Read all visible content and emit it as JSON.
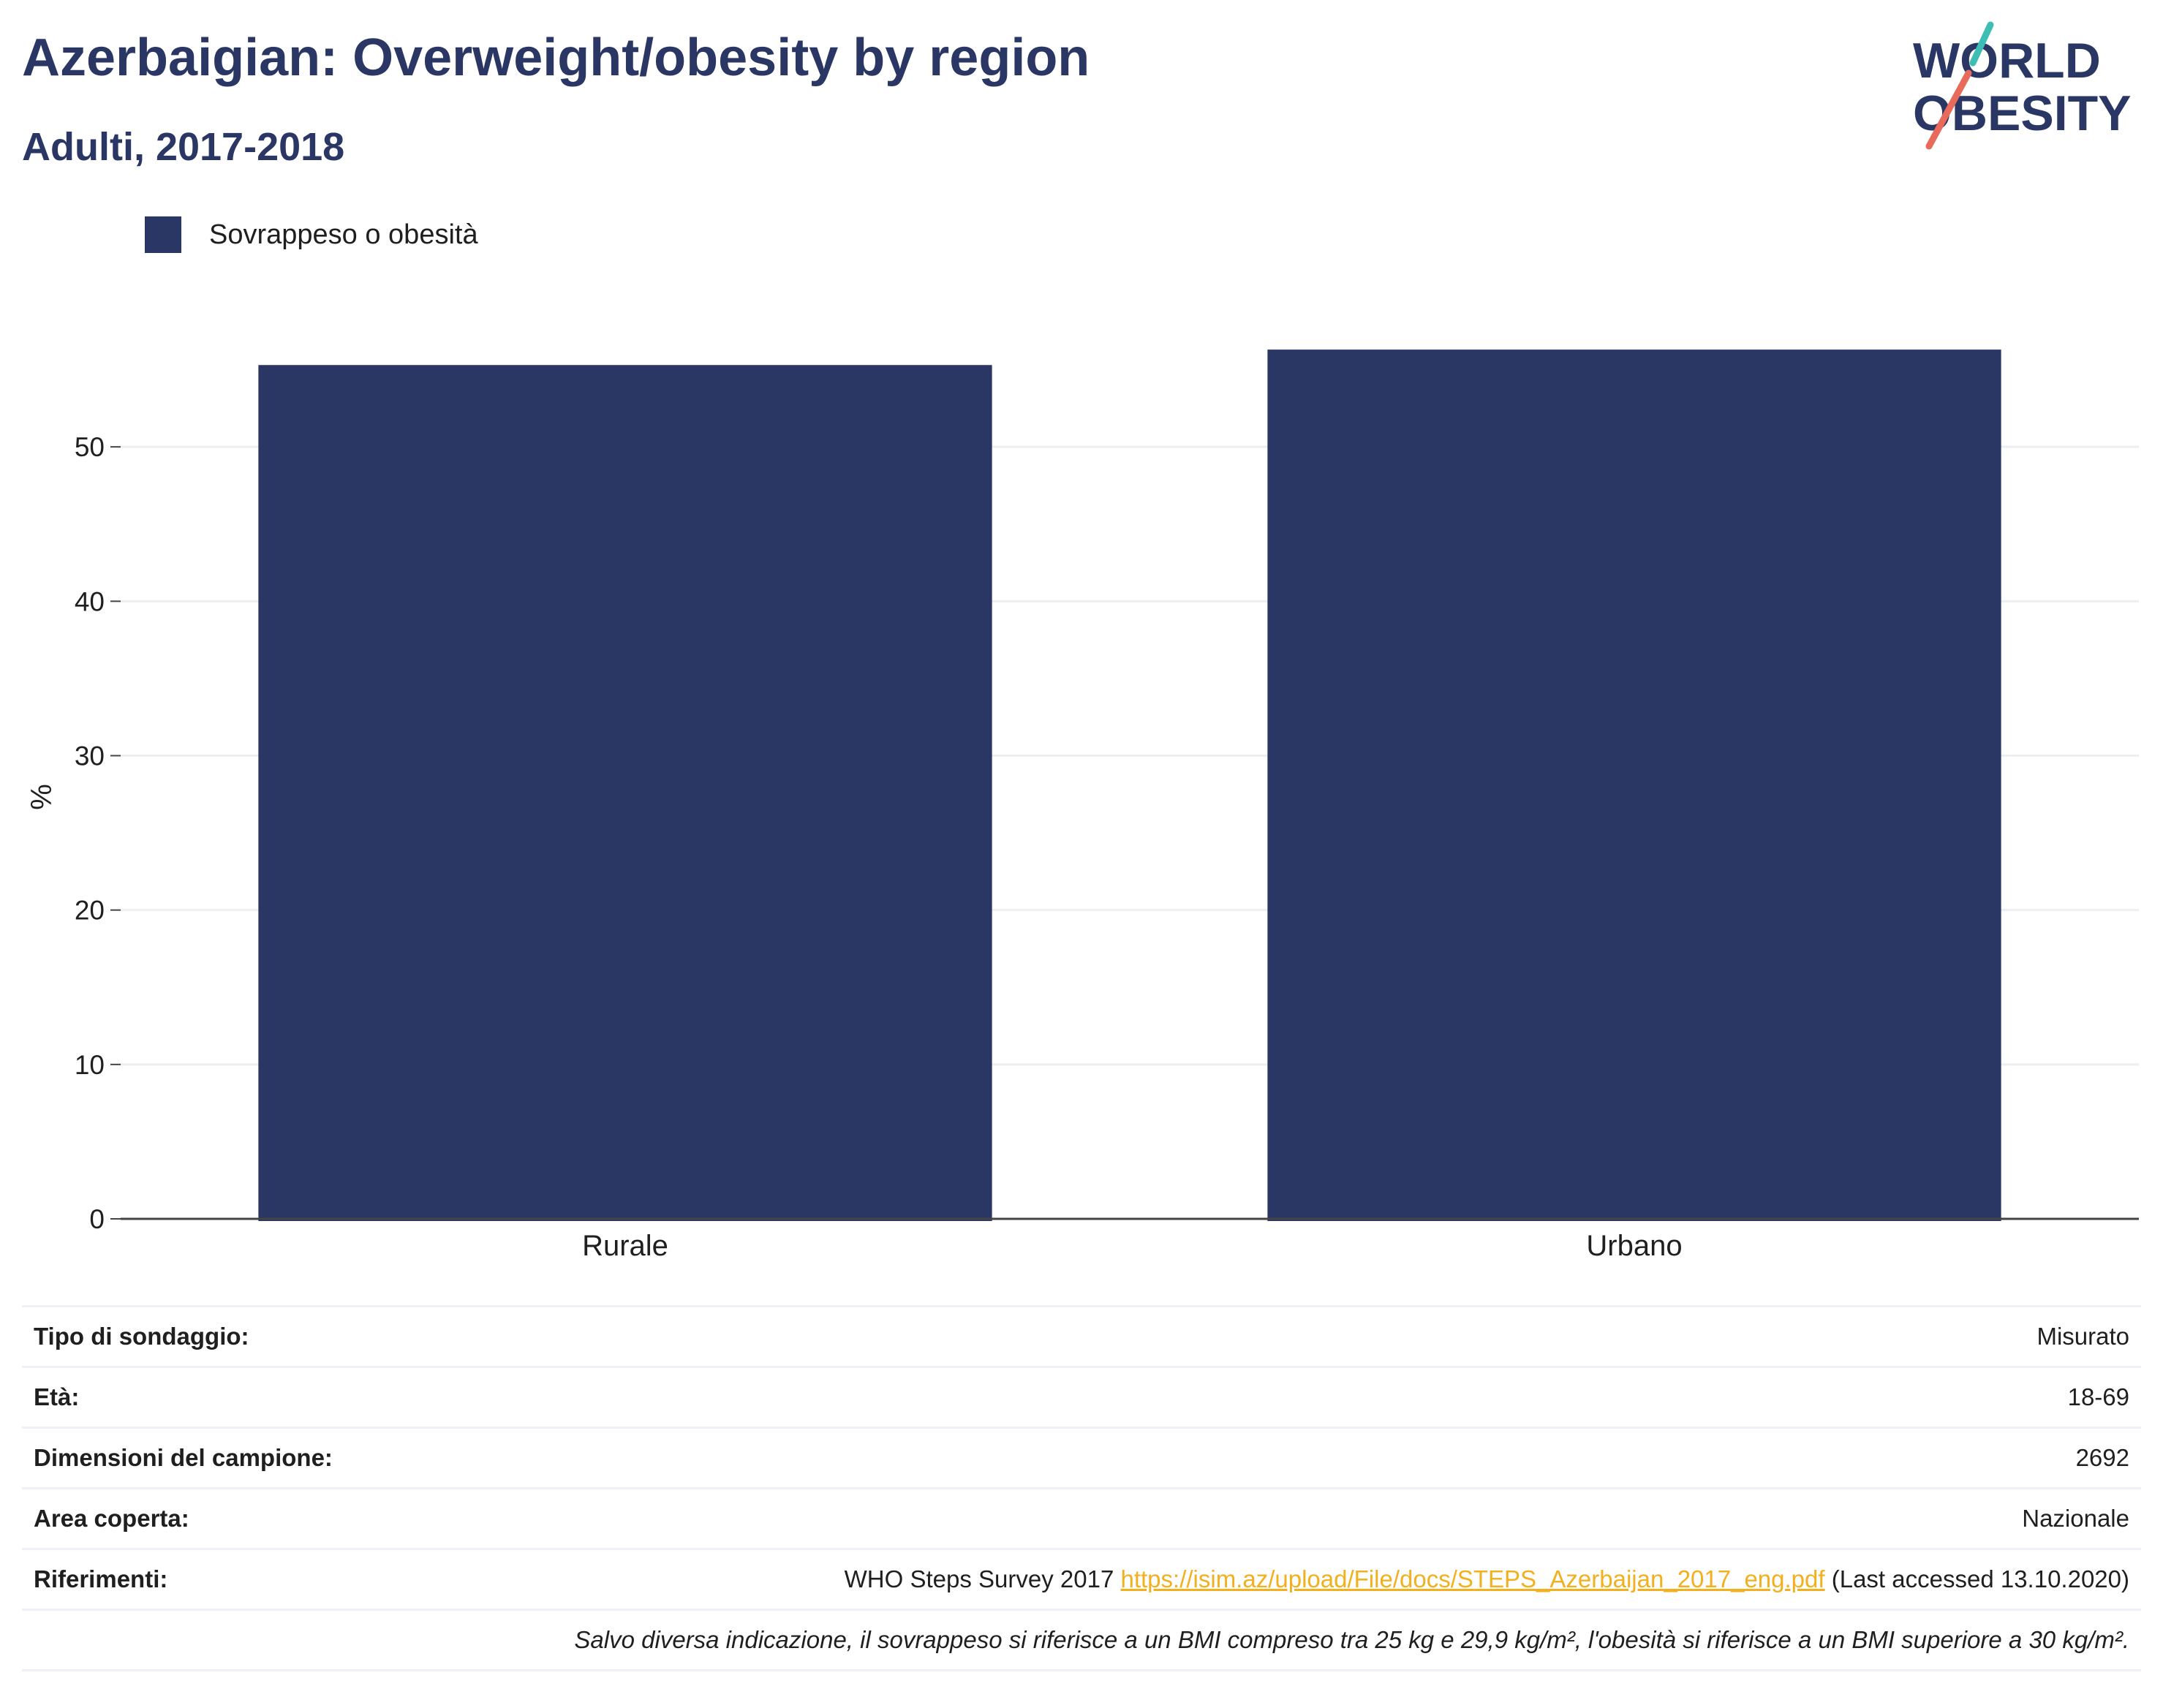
{
  "header": {
    "title": "Azerbaigian: Overweight/obesity by region",
    "subtitle": "Adulti, 2017-2018"
  },
  "logo": {
    "line1": "WORLD",
    "line2": "OBESITY",
    "colors": {
      "text": "#2a3663",
      "accent_teal": "#3dbdb3",
      "accent_coral": "#e86a5a"
    }
  },
  "legend": {
    "label": "Sovrappeso o obesità",
    "color": "#2a3663"
  },
  "chart_data": {
    "type": "bar",
    "categories": [
      "Rurale",
      "Urbano"
    ],
    "series": [
      {
        "name": "Sovrappeso o obesità",
        "values": [
          55.3,
          56.3
        ],
        "color": "#2a3663"
      }
    ],
    "ylabel": "%",
    "xlabel": "",
    "ylim": [
      0,
      60
    ],
    "yticks": [
      0,
      10,
      20,
      30,
      40,
      50
    ],
    "grid": true,
    "legend_position": "top-left"
  },
  "info": {
    "rows": [
      {
        "key": "Tipo di sondaggio:",
        "value": "Misurato"
      },
      {
        "key": "Età:",
        "value": "18-69"
      },
      {
        "key": "Dimensioni del campione:",
        "value": "2692"
      },
      {
        "key": "Area coperta:",
        "value": "Nazionale"
      }
    ],
    "reference": {
      "key": "Riferimenti:",
      "prefix": "WHO Steps Survey 2017 ",
      "link": "https://isim.az/upload/File/docs/STEPS_Azerbaijan_2017_eng.pdf",
      "suffix": " (Last accessed 13.10.2020)"
    },
    "note": "Salvo diversa indicazione, il sovrappeso si riferisce a un BMI compreso tra 25 kg e 29,9 kg/m², l'obesità si riferisce a un BMI superiore a 30 kg/m²."
  }
}
